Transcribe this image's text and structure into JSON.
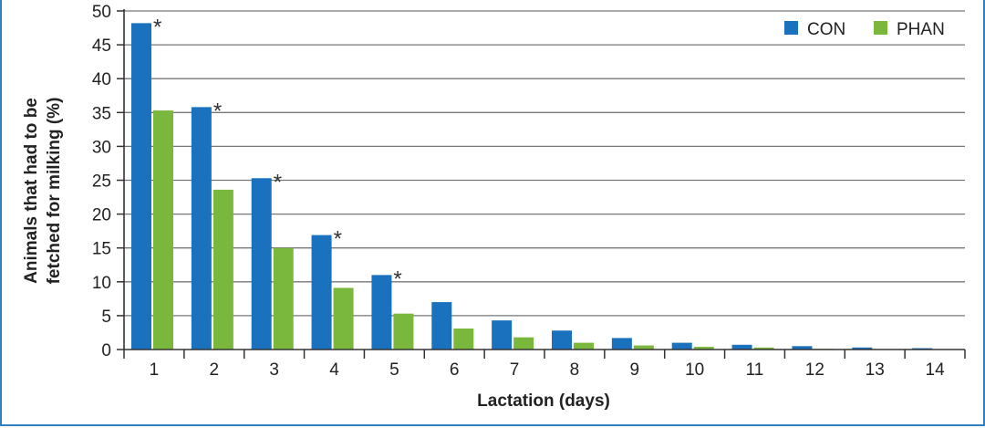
{
  "chart_data": {
    "type": "bar",
    "title": "",
    "xlabel": "Lactation (days)",
    "ylabel_line1": "Animals that had to be",
    "ylabel_line2": "fetched for milking (%)",
    "ylim": [
      0,
      50
    ],
    "yticks": [
      0,
      5,
      10,
      15,
      20,
      25,
      30,
      35,
      40,
      45,
      50
    ],
    "grid": true,
    "legend_position": "top-right",
    "categories": [
      "1",
      "2",
      "3",
      "4",
      "5",
      "6",
      "7",
      "8",
      "9",
      "10",
      "11",
      "12",
      "13",
      "14"
    ],
    "series": [
      {
        "name": "CON",
        "color": "#1a72be",
        "values": [
          48.2,
          35.8,
          25.3,
          16.9,
          11.0,
          7.0,
          4.3,
          2.8,
          1.7,
          1.0,
          0.7,
          0.5,
          0.3,
          0.2
        ],
        "significance": [
          "*",
          "*",
          "*",
          "*",
          "*",
          "",
          "",
          "",
          "",
          "",
          "",
          "",
          "",
          ""
        ]
      },
      {
        "name": "PHAN",
        "color": "#79b83c",
        "values": [
          35.3,
          23.6,
          15.0,
          9.1,
          5.3,
          3.1,
          1.8,
          1.0,
          0.6,
          0.4,
          0.3,
          0.1,
          0.0,
          0.0
        ]
      }
    ]
  }
}
